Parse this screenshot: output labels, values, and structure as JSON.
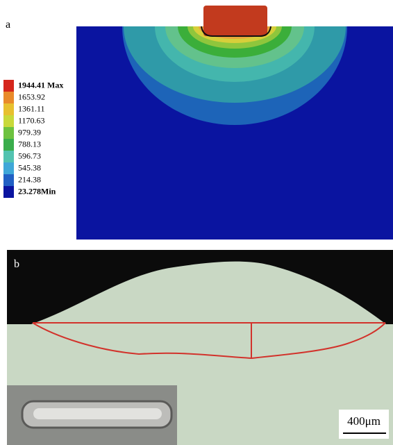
{
  "panel_a": {
    "label": "a",
    "legend": [
      "1944.41 Max",
      "1653.92",
      "1361.11",
      "1170.63",
      "979.39",
      "788.13",
      "596.73",
      "545.38",
      "214.38",
      "23.278Min"
    ]
  },
  "panel_b": {
    "label": "b",
    "scale_bar": "400μm"
  }
}
